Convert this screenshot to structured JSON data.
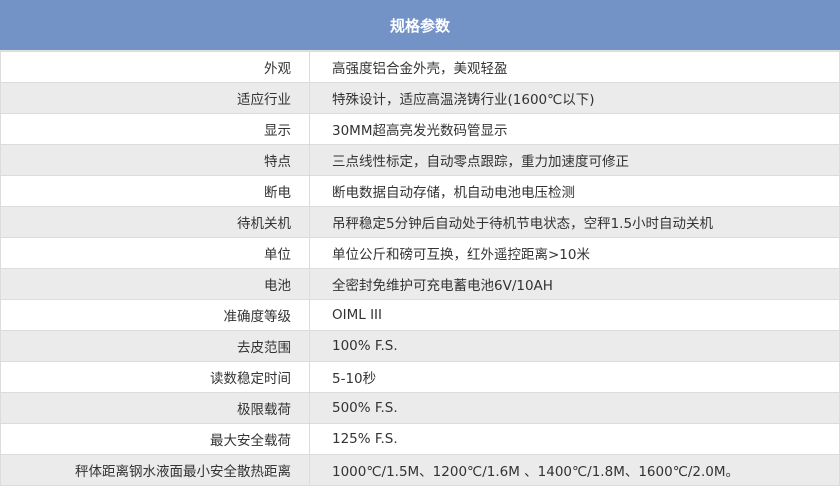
{
  "title": "规格参数",
  "rows": [
    {
      "label": "外观",
      "value": "高强度铝合金外壳，美观轻盈"
    },
    {
      "label": "适应行业",
      "value": "特殊设计，适应高温浇铸行业(1600℃以下)"
    },
    {
      "label": "显示",
      "value": "30MM超高亮发光数码管显示"
    },
    {
      "label": "特点",
      "value": "三点线性标定，自动零点跟踪，重力加速度可修正"
    },
    {
      "label": "断电",
      "value": "断电数据自动存储，机自动电池电压检测"
    },
    {
      "label": "待机关机",
      "value": "吊秤稳定5分钟后自动处于待机节电状态，空秤1.5小时自动关机"
    },
    {
      "label": "单位",
      "value": "单位公斤和磅可互换，红外遥控距离>10米"
    },
    {
      "label": "电池",
      "value": "全密封免维护可充电蓄电池6V/10AH"
    },
    {
      "label": "准确度等级",
      "value": "OIML III"
    },
    {
      "label": "去皮范围",
      "value": "100% F.S."
    },
    {
      "label": "读数稳定时间",
      "value": "5-10秒"
    },
    {
      "label": "极限载荷",
      "value": "500% F.S."
    },
    {
      "label": "最大安全载荷",
      "value": "125% F.S."
    },
    {
      "label": "秤体距离钢水液面最小安全散热距离",
      "value": "1000℃/1.5M、1200℃/1.6M 、1400℃/1.8M、1600℃/2.0M。"
    }
  ]
}
